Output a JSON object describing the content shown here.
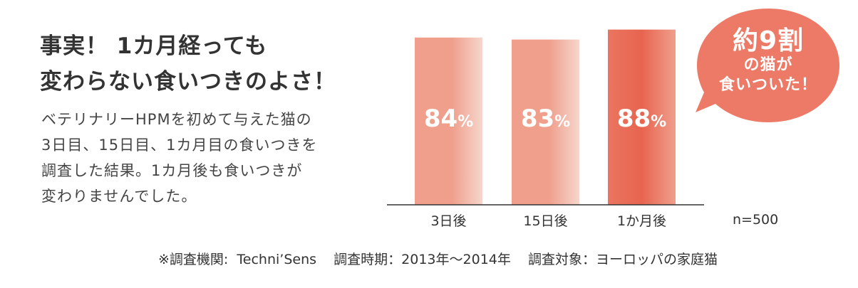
{
  "headline": {
    "line1": "事実！ 1カ月経っても",
    "line2": "変わらない食いつきのよさ！"
  },
  "description": {
    "line1": "ベテリナリーHPMを初めて与えた猫の",
    "line2": "3日目、15日目、1カ月目の食いつきを",
    "line3": "調査した結果。1カ月後も食いつきが",
    "line4": "変わりませんでした。"
  },
  "chart_data": {
    "type": "bar",
    "categories": [
      "3日後",
      "15日後",
      "1か月後"
    ],
    "values": [
      84,
      83,
      88
    ],
    "value_labels": [
      "84%",
      "83%",
      "88%"
    ],
    "unit": "%",
    "ylim": [
      0,
      100
    ],
    "grid": false,
    "legend": "none",
    "sample_size": "n=500",
    "colors": {
      "bar_light": "#f6d6cc",
      "bar_mid": "#ef9f8c",
      "bar_dark": "#ea7560",
      "bar_highlight_dark": "#e8644f",
      "axis": "#333333"
    }
  },
  "callout": {
    "big": "約9割",
    "line1": "の猫が",
    "line2": "食いついた！",
    "color": "#ec7a67"
  },
  "footnote": "※調査機関:  Techni’Sens    調査時期：2013年～2014年    調査対象：ヨーロッパの家庭猫"
}
